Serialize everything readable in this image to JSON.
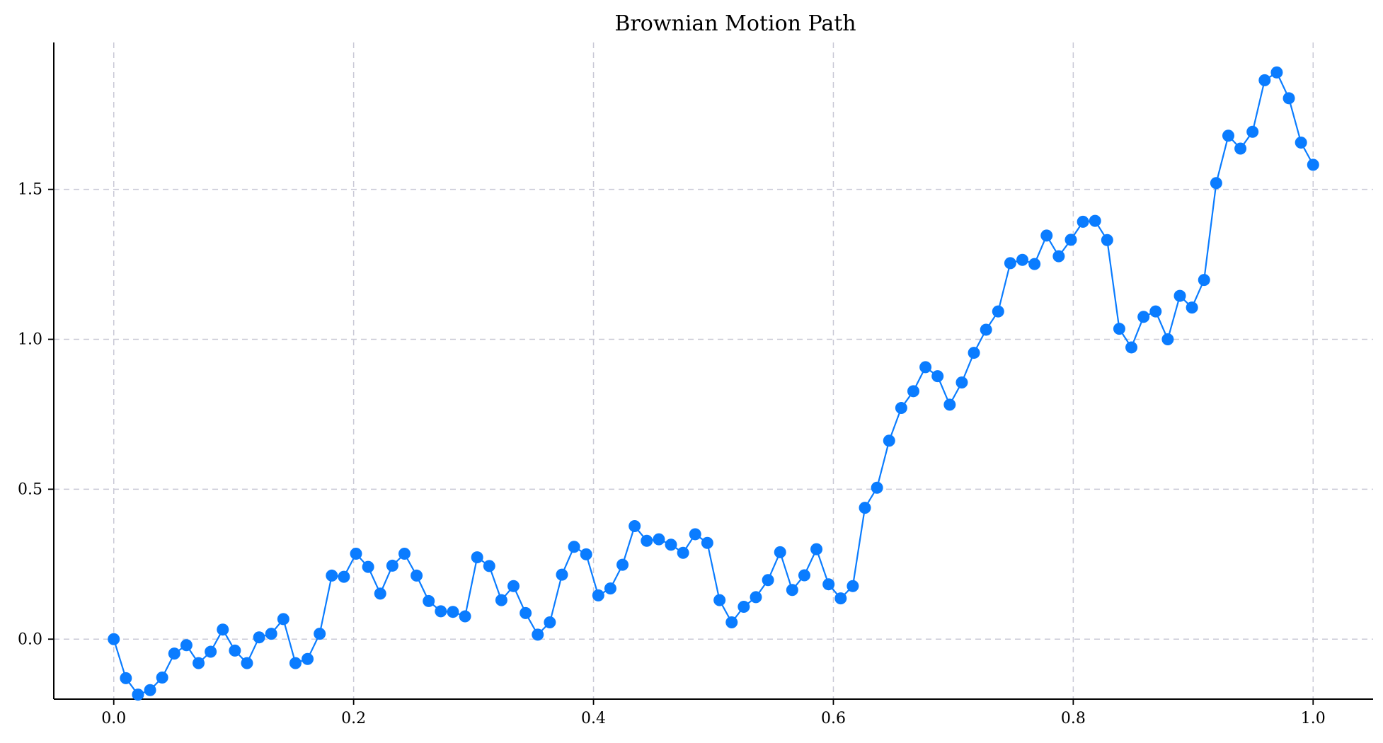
{
  "chart_data": {
    "type": "line",
    "title": "Brownian Motion Path",
    "xlabel": "",
    "ylabel": "",
    "xlim": [
      -0.05,
      1.05
    ],
    "ylim": [
      -0.2,
      1.99
    ],
    "xticks": [
      0.0,
      0.2,
      0.4,
      0.6,
      0.8,
      1.0
    ],
    "xtick_labels": [
      "0.0",
      "0.2",
      "0.4",
      "0.6",
      "0.8",
      "1.0"
    ],
    "yticks": [
      0.0,
      0.5,
      1.0,
      1.5
    ],
    "ytick_labels": [
      "0.0",
      "0.5",
      "1.0",
      "1.5"
    ],
    "grid": true,
    "line_color": "#0a7cff",
    "marker": "circle",
    "series": [
      {
        "x": [
          0.0,
          0.0101,
          0.0202,
          0.0303,
          0.0404,
          0.0505,
          0.0606,
          0.0707,
          0.0808,
          0.0909,
          0.101,
          0.1111,
          0.1212,
          0.1313,
          0.1414,
          0.1515,
          0.1616,
          0.1717,
          0.1818,
          0.1919,
          0.202,
          0.2121,
          0.2222,
          0.2323,
          0.2424,
          0.2525,
          0.2626,
          0.2727,
          0.2828,
          0.2929,
          0.303,
          0.3131,
          0.3232,
          0.3333,
          0.3434,
          0.3535,
          0.3636,
          0.3737,
          0.3838,
          0.3939,
          0.404,
          0.4141,
          0.4242,
          0.4343,
          0.4444,
          0.4545,
          0.4646,
          0.4747,
          0.4848,
          0.4949,
          0.5051,
          0.5152,
          0.5253,
          0.5354,
          0.5455,
          0.5556,
          0.5657,
          0.5758,
          0.5859,
          0.596,
          0.6061,
          0.6162,
          0.6263,
          0.6364,
          0.6465,
          0.6566,
          0.6667,
          0.6768,
          0.6869,
          0.697,
          0.7071,
          0.7172,
          0.7273,
          0.7374,
          0.7475,
          0.7576,
          0.7677,
          0.7778,
          0.7879,
          0.798,
          0.8081,
          0.8182,
          0.8283,
          0.8384,
          0.8485,
          0.8586,
          0.8687,
          0.8788,
          0.8889,
          0.899,
          0.9091,
          0.9192,
          0.9293,
          0.9394,
          0.9495,
          0.9596,
          0.9697,
          0.9798,
          0.9899,
          1.0
        ],
        "values": [
          0.0,
          -0.13,
          -0.185,
          -0.17,
          -0.128,
          -0.048,
          -0.02,
          -0.08,
          -0.042,
          0.032,
          -0.038,
          -0.08,
          0.006,
          0.018,
          0.067,
          -0.08,
          -0.066,
          0.018,
          0.212,
          0.208,
          0.285,
          0.241,
          0.152,
          0.245,
          0.285,
          0.212,
          0.127,
          0.093,
          0.091,
          0.076,
          0.273,
          0.244,
          0.13,
          0.177,
          0.087,
          0.015,
          0.056,
          0.215,
          0.308,
          0.283,
          0.146,
          0.169,
          0.248,
          0.377,
          0.328,
          0.333,
          0.315,
          0.288,
          0.35,
          0.321,
          0.13,
          0.056,
          0.108,
          0.14,
          0.197,
          0.29,
          0.164,
          0.213,
          0.3,
          0.183,
          0.136,
          0.177,
          0.438,
          0.505,
          0.662,
          0.771,
          0.827,
          0.907,
          0.877,
          0.782,
          0.856,
          0.955,
          1.032,
          1.093,
          1.254,
          1.265,
          1.251,
          1.346,
          1.277,
          1.332,
          1.392,
          1.395,
          1.331,
          1.035,
          0.973,
          1.075,
          1.093,
          1.0,
          1.145,
          1.106,
          1.198,
          1.521,
          1.679,
          1.636,
          1.692,
          1.864,
          1.89,
          1.804,
          1.656,
          1.582
        ]
      }
    ]
  }
}
